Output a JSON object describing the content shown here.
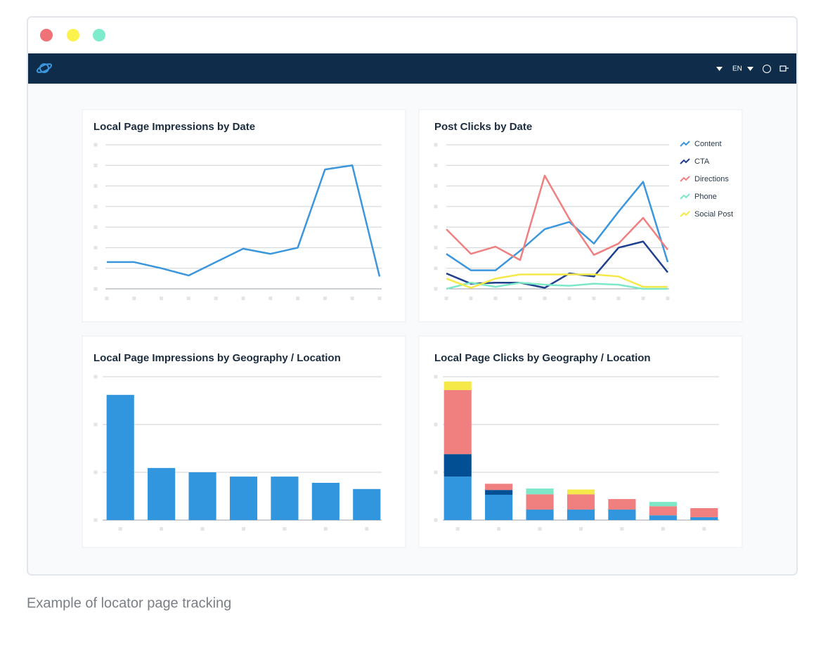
{
  "nav": {
    "language": "EN"
  },
  "caption": "Example of locator page tracking",
  "chart_data": [
    {
      "type": "line",
      "title": "Local Page Impressions by Date",
      "categories": [
        null,
        null,
        null,
        null,
        null,
        null,
        null,
        null,
        null,
        null,
        null
      ],
      "series": [
        {
          "color": "#3a96dd",
          "values": [
            1.3,
            1.3,
            1.0,
            0.65,
            1.3,
            1.95,
            1.7,
            2.0,
            5.8,
            6.0,
            0.6
          ]
        }
      ],
      "ylim": [
        0,
        7
      ],
      "yticks": [
        0,
        1,
        2,
        3,
        4,
        5,
        6,
        7
      ],
      "grid": true
    },
    {
      "type": "line",
      "title": "Post Clicks by Date",
      "categories": [
        null,
        null,
        null,
        null,
        null,
        null,
        null,
        null,
        null,
        null
      ],
      "series": [
        {
          "name": "Content",
          "color": "#3a96dd",
          "values": [
            1.7,
            0.9,
            0.9,
            1.85,
            2.9,
            3.25,
            2.2,
            3.75,
            5.2,
            1.3
          ]
        },
        {
          "name": "CTA",
          "color": "#1f3f8f",
          "values": [
            0.75,
            0.25,
            0.3,
            0.3,
            0.05,
            0.75,
            0.6,
            2.0,
            2.3,
            0.8
          ]
        },
        {
          "name": "Directions",
          "color": "#f07f80",
          "values": [
            2.9,
            1.7,
            2.05,
            1.4,
            5.5,
            3.4,
            1.65,
            2.2,
            3.45,
            1.9
          ]
        },
        {
          "name": "Phone",
          "color": "#7de8c8",
          "values": [
            0,
            0.3,
            0.1,
            0.3,
            0.2,
            0.15,
            0.25,
            0.2,
            0,
            0
          ]
        },
        {
          "name": "Social Post",
          "color": "#f5e94a",
          "values": [
            0.5,
            0.05,
            0.5,
            0.7,
            0.7,
            0.7,
            0.7,
            0.6,
            0.1,
            0.1
          ]
        }
      ],
      "ylim": [
        0,
        7
      ],
      "yticks": [
        0,
        1,
        2,
        3,
        4,
        5,
        6,
        7
      ],
      "grid": true,
      "legend": "right"
    },
    {
      "type": "bar",
      "title": "Local Page Impressions by Geography / Location",
      "categories": [
        null,
        null,
        null,
        null,
        null,
        null,
        null
      ],
      "series": [
        {
          "color": "#3196de",
          "values": [
            2.62,
            1.09,
            1.0,
            0.91,
            0.91,
            0.78,
            0.65
          ]
        }
      ],
      "ylim": [
        0,
        3
      ],
      "yticks": [
        0,
        1,
        2,
        3
      ],
      "grid": true
    },
    {
      "type": "bar",
      "title": "Local Page Clicks by Geography / Location",
      "stacked": true,
      "categories": [
        null,
        null,
        null,
        null,
        null,
        null,
        null
      ],
      "series": [
        {
          "color": "#3196de",
          "values": [
            0.91,
            0.53,
            0.22,
            0.22,
            0.22,
            0.1,
            0.06
          ]
        },
        {
          "color": "#034f94",
          "values": [
            0.47,
            0.1,
            0,
            0,
            0,
            0,
            0
          ]
        },
        {
          "color": "#f07f80",
          "values": [
            1.34,
            0.13,
            0.32,
            0.32,
            0.22,
            0.19,
            0.19
          ]
        },
        {
          "color": "#7de8c8",
          "values": [
            0,
            0,
            0.12,
            0,
            0,
            0.09,
            0
          ]
        },
        {
          "color": "#f5e94a",
          "values": [
            0.18,
            0,
            0,
            0.1,
            0,
            0,
            0
          ]
        }
      ],
      "ylim": [
        0,
        3
      ],
      "yticks": [
        0,
        1,
        2,
        3
      ],
      "grid": true
    }
  ]
}
